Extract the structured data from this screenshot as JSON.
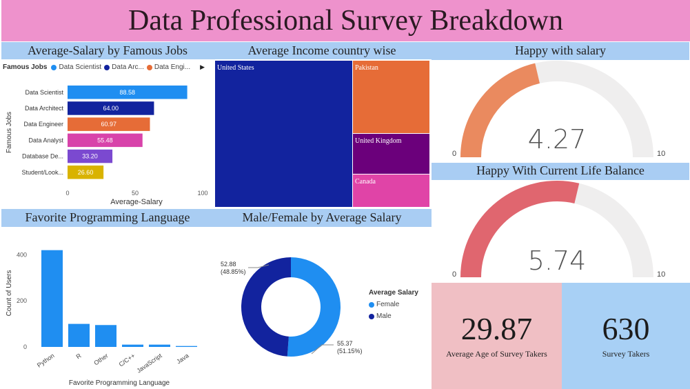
{
  "title": "Data Professional Survey Breakdown",
  "colors": {
    "title_bg": "#ee92cc",
    "band_bg": "#a9cdf3",
    "gauge1": "#ea8a5f",
    "gauge2": "#e0666f",
    "gauge_track": "#efeeee",
    "kpi_age_bg": "#f0bfc4",
    "kpi_takers_bg": "#a8d0f5"
  },
  "chart_data": [
    {
      "type": "bar",
      "orientation": "horizontal",
      "title": "Average-Salary by Famous Jobs",
      "legend_title": "Famous Jobs",
      "legend": [
        "Data Scientist",
        "Data Arc...",
        "Data Engi..."
      ],
      "legend_colors": [
        "#1f8ef1",
        "#12239e",
        "#e66c37"
      ],
      "categories": [
        "Data Scientist",
        "Data Architect",
        "Data Engineer",
        "Data Analyst",
        "Database De...",
        "Student/Look..."
      ],
      "values": [
        88.58,
        64.0,
        60.97,
        55.48,
        33.2,
        26.6
      ],
      "value_labels": [
        "88.58",
        "64.00",
        "60.97",
        "55.48",
        "33.20",
        "26.60"
      ],
      "colors": [
        "#1f8ef1",
        "#12239e",
        "#e66c37",
        "#d843aa",
        "#7b49d0",
        "#d9b300"
      ],
      "xlabel": "Average-Salary",
      "ylabel": "Famous Jobs",
      "xlim": [
        0,
        100
      ],
      "xticks": [
        "0",
        "50",
        "100"
      ]
    },
    {
      "type": "treemap",
      "title": "Average Income country wise",
      "categories": [
        "United States",
        "Pakistan",
        "United Kingdom",
        "Canada"
      ],
      "colors": [
        "#12239e",
        "#e66c37",
        "#6b007b",
        "#e044a7"
      ]
    },
    {
      "type": "bar",
      "title": "Favorite Programming Language",
      "categories": [
        "Python",
        "R",
        "Other",
        "C/C++",
        "JavaScript",
        "Java"
      ],
      "values": [
        420,
        100,
        95,
        10,
        10,
        4
      ],
      "color": "#1f8ef1",
      "xlabel": "Favorite Programming Language",
      "ylabel": "Count of Users",
      "ylim": [
        0,
        440
      ],
      "yticks": [
        0,
        200,
        400
      ]
    },
    {
      "type": "pie",
      "title": "Male/Female by Average Salary",
      "legend_title": "Average Salary",
      "categories": [
        "Female",
        "Male"
      ],
      "values": [
        55.37,
        52.88
      ],
      "labels": [
        {
          "value": "55.37",
          "pct": "(51.15%)"
        },
        {
          "value": "52.88",
          "pct": "(48.85%)"
        }
      ],
      "colors": [
        "#1f8ef1",
        "#12239e"
      ]
    },
    {
      "type": "gauge",
      "title": "Happy with salary",
      "value": 4.27,
      "value_label": "4.27",
      "min": 0,
      "max": 10,
      "min_label": "0",
      "max_label": "10"
    },
    {
      "type": "gauge",
      "title": "Happy With Current Life Balance",
      "value": 5.74,
      "value_label": "5.74",
      "min": 0,
      "max": 10,
      "min_label": "0",
      "max_label": "10"
    }
  ],
  "kpis": {
    "age": {
      "value": "29.87",
      "label": "Average Age of Survey Takers"
    },
    "takers": {
      "value": "630",
      "label": "Survey Takers"
    }
  }
}
